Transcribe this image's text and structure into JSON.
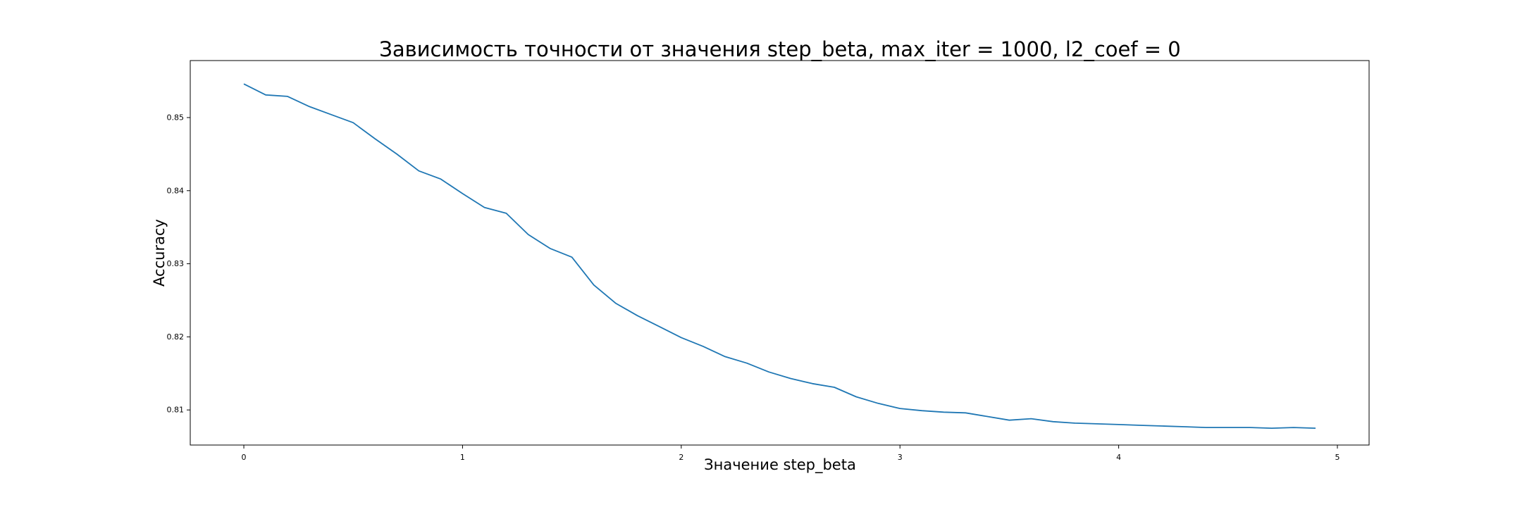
{
  "chart_data": {
    "type": "line",
    "title": "Зависимость точности от значения step_beta, max_iter = 1000, l2_coef = 0",
    "xlabel": "Значение step_beta",
    "ylabel": "Accuracy",
    "xlim": [
      -0.245,
      5.145
    ],
    "ylim": [
      0.8052,
      0.8578
    ],
    "x_ticks": [
      0,
      1,
      2,
      3,
      4,
      5
    ],
    "x_tick_labels": [
      "0",
      "1",
      "2",
      "3",
      "4",
      "5"
    ],
    "y_ticks": [
      0.81,
      0.82,
      0.83,
      0.84,
      0.85
    ],
    "y_tick_labels": [
      "0.81",
      "0.82",
      "0.83",
      "0.84",
      "0.85"
    ],
    "grid": false,
    "line_color": "#1f77b4",
    "series": [
      {
        "x": [
          0.0,
          0.1,
          0.2,
          0.3,
          0.4,
          0.5,
          0.6,
          0.7,
          0.8,
          0.9,
          1.0,
          1.1,
          1.2,
          1.3,
          1.4,
          1.5,
          1.6,
          1.7,
          1.8,
          1.9,
          2.0,
          2.1,
          2.2,
          2.3,
          2.4,
          2.5,
          2.6,
          2.7,
          2.8,
          2.9,
          3.0,
          3.1,
          3.2,
          3.3,
          3.4,
          3.5,
          3.6,
          3.7,
          3.8,
          3.9,
          4.0,
          4.1,
          4.2,
          4.3,
          4.4,
          4.5,
          4.6,
          4.7,
          4.8,
          4.9
        ],
        "values": [
          0.8546,
          0.8531,
          0.8529,
          0.8515,
          0.8504,
          0.8493,
          0.8471,
          0.845,
          0.8427,
          0.8416,
          0.8396,
          0.8377,
          0.8369,
          0.834,
          0.8321,
          0.8309,
          0.8271,
          0.8246,
          0.8229,
          0.8214,
          0.8199,
          0.8187,
          0.8173,
          0.8164,
          0.8152,
          0.8143,
          0.8136,
          0.8131,
          0.8118,
          0.8109,
          0.8102,
          0.8099,
          0.8097,
          0.8096,
          0.8091,
          0.8086,
          0.8088,
          0.8084,
          0.8082,
          0.8081,
          0.808,
          0.8079,
          0.8078,
          0.8077,
          0.8076,
          0.8076,
          0.8076,
          0.8075,
          0.8076,
          0.8075
        ]
      }
    ]
  }
}
